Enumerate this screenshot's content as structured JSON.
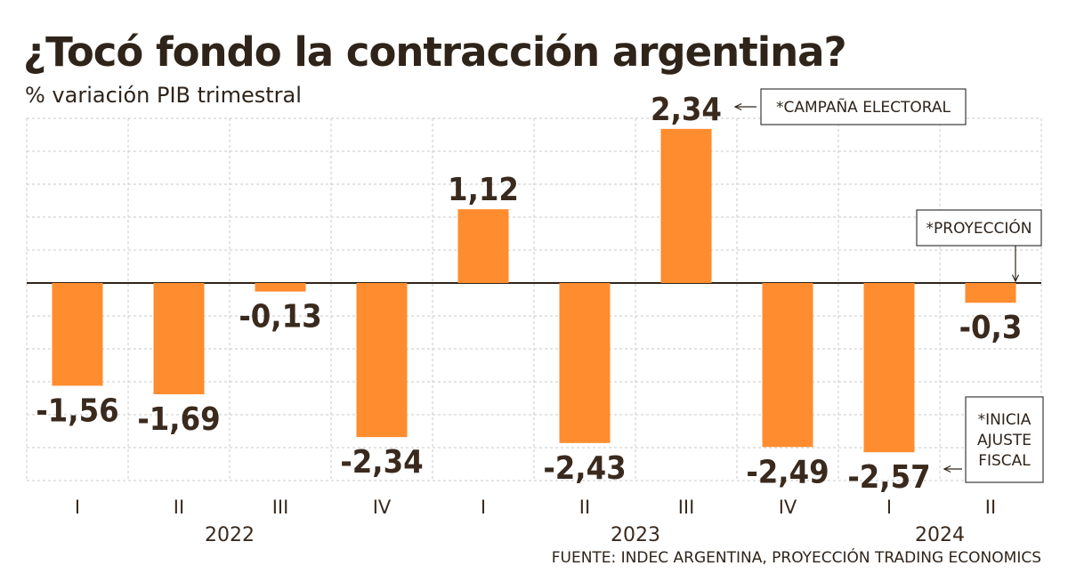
{
  "chart_data": {
    "type": "bar",
    "title": "¿Tocó fondo la contracción argentina?",
    "subtitle": "% variación PIB trimestral",
    "categories": [
      "I",
      "II",
      "III",
      "IV",
      "I",
      "II",
      "III",
      "IV",
      "I",
      "II"
    ],
    "values": [
      -1.56,
      -1.69,
      -0.13,
      -2.34,
      1.12,
      -2.43,
      2.34,
      -2.49,
      -2.57,
      -0.3
    ],
    "value_labels": [
      "-1,56",
      "-1,69",
      "-0,13",
      "-2,34",
      "1,12",
      "-2,43",
      "2,34",
      "-2,49",
      "-2,57",
      "-0,3"
    ],
    "years": [
      {
        "label": "2022",
        "start": 0,
        "end": 3
      },
      {
        "label": "2023",
        "start": 4,
        "end": 7
      },
      {
        "label": "2024",
        "start": 8,
        "end": 9
      }
    ],
    "ylim": [
      -3.0,
      2.5
    ],
    "grid": true,
    "bar_color": "#ff8c2e",
    "annotations": [
      {
        "target": 6,
        "lines": [
          "*CAMPAÑA ELECTORAL"
        ]
      },
      {
        "target": 9,
        "lines": [
          "*PROYECCIÓN"
        ]
      },
      {
        "target": 8,
        "lines": [
          "*INICIA",
          "AJUSTE",
          "FISCAL"
        ]
      }
    ],
    "source": "FUENTE: INDEC ARGENTINA, PROYECCIÓN TRADING ECONOMICS"
  }
}
